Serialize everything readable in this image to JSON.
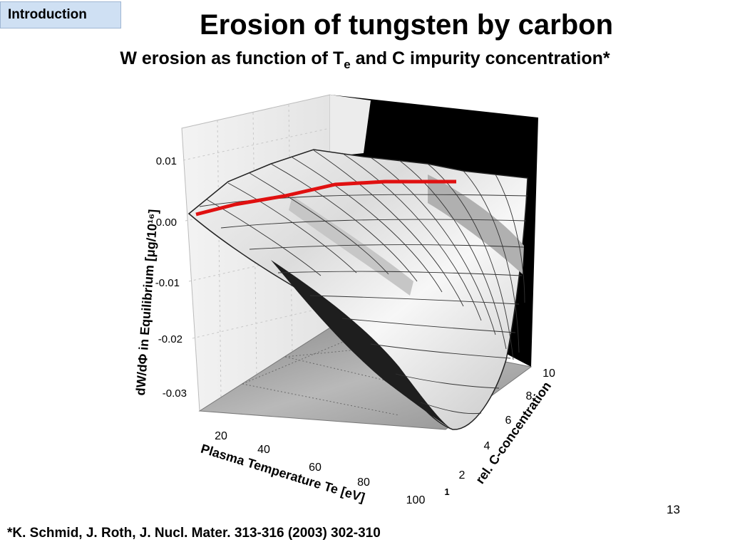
{
  "slide": {
    "tag": "Introduction",
    "title": "Erosion of tungsten by carbon",
    "subtitle_main": "W erosion as function of T",
    "subtitle_sub": "e",
    "subtitle_rest": " and C impurity concentration*",
    "page_number": "13",
    "reference": "*K. Schmid, J. Roth, J. Nucl. Mater. 313-316 (2003) 302-310"
  },
  "figure": {
    "z_axis_label": "dW/dΦ in Equilibrium [μg/10¹⁶]",
    "z_ticks": [
      "0.01",
      "0.00",
      "-0.01",
      "-0.02",
      "-0.03"
    ],
    "x_axis_label": "Plasma Temperature Te [eV]",
    "x_ticks": [
      "20",
      "40",
      "60",
      "80",
      "100"
    ],
    "y_axis_label": "rel. C-concentration",
    "y_ticks": [
      "1",
      "2",
      "4",
      "6",
      "8",
      "10"
    ],
    "highlight_color": "#e01010"
  }
}
